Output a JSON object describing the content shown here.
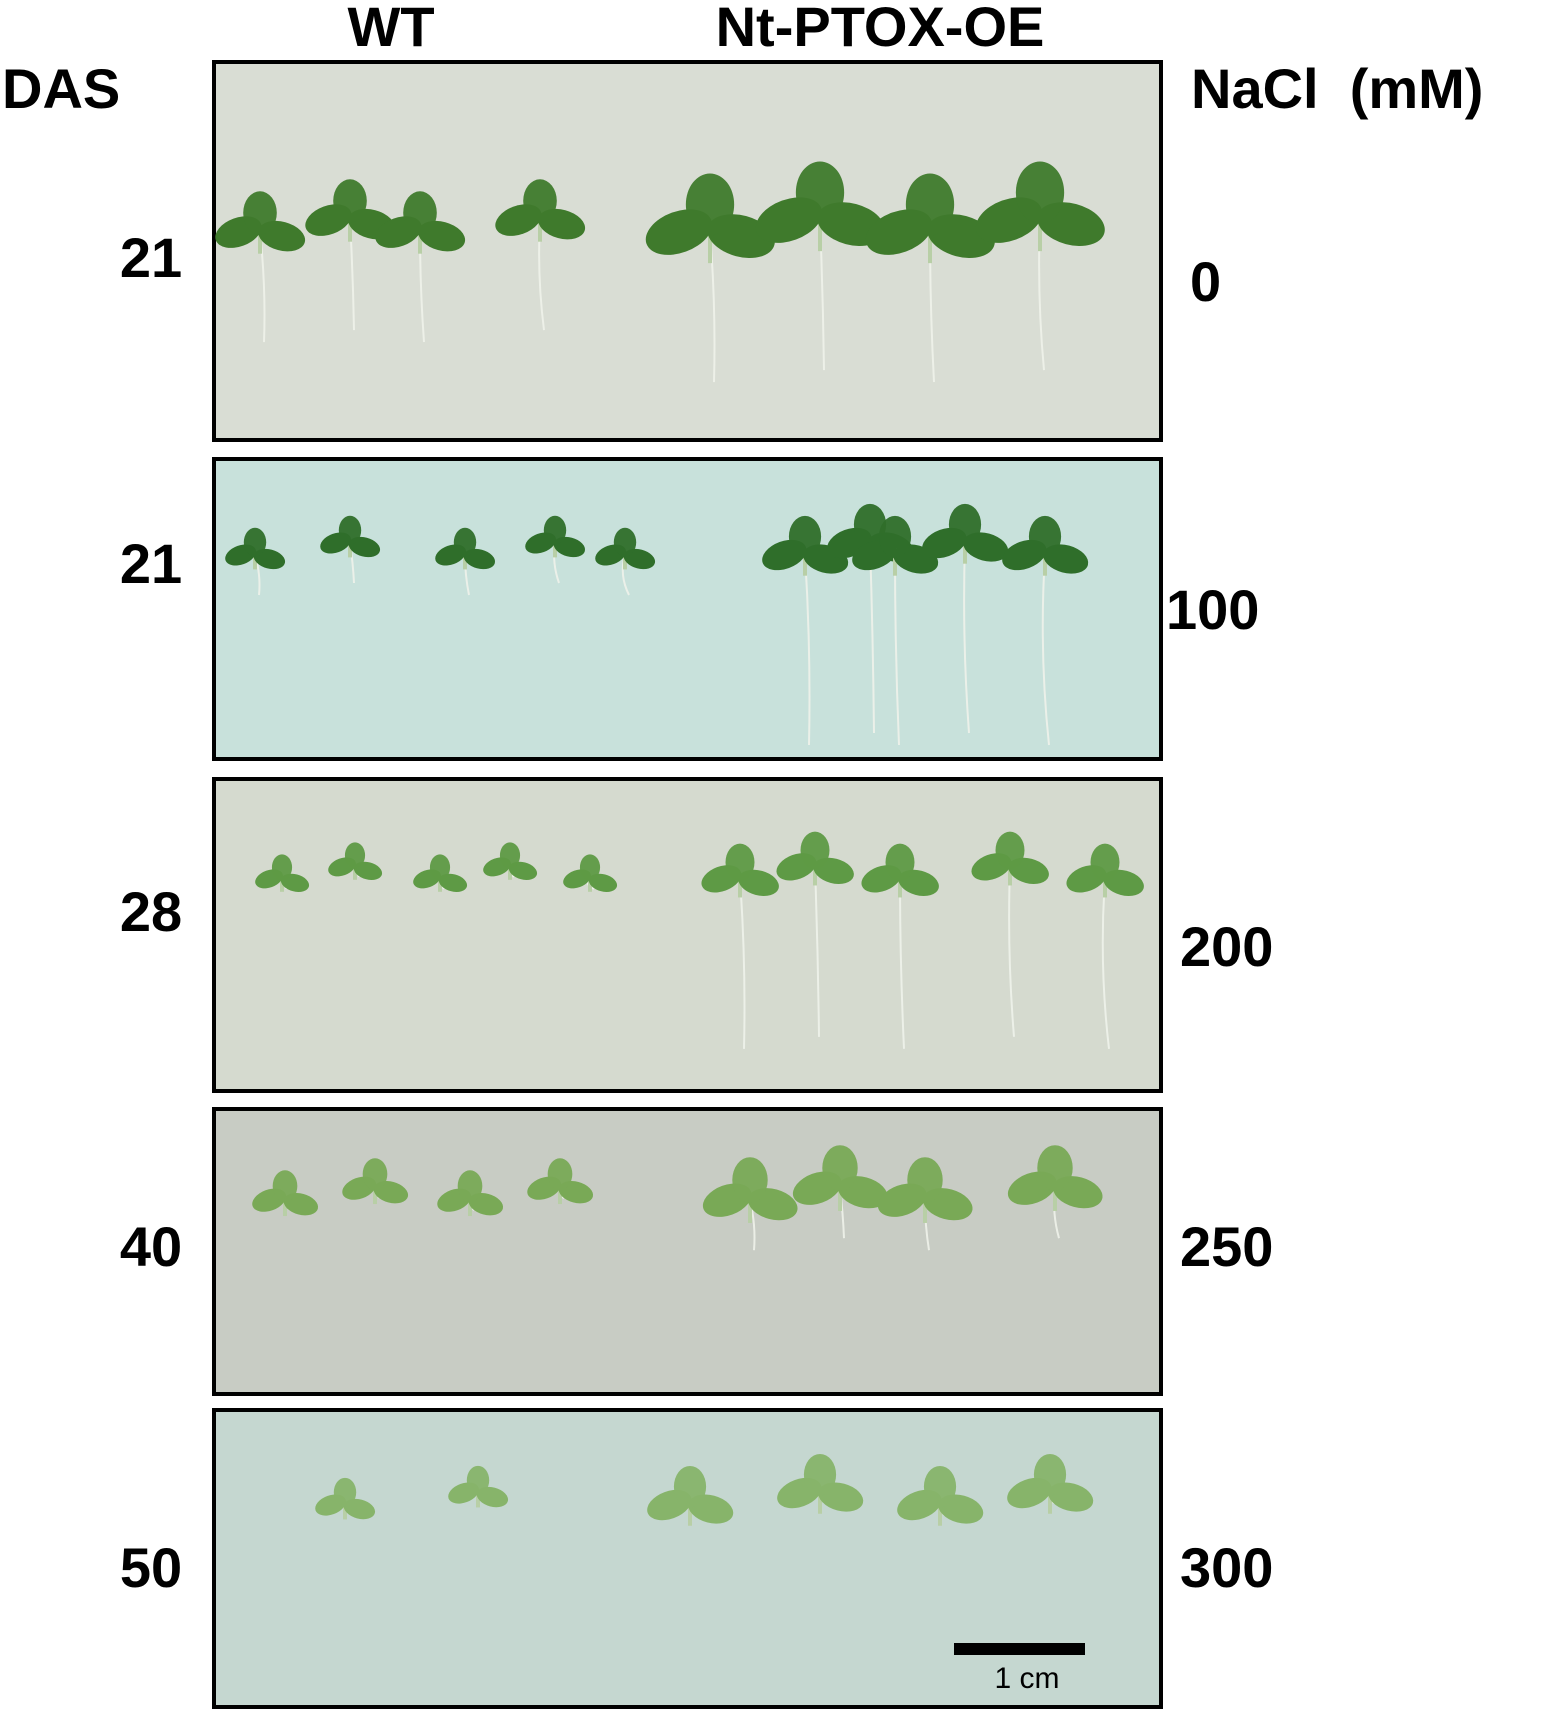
{
  "header": {
    "das_label": "DAS",
    "nacl_label": "NaCl  (mM)",
    "columns": [
      "WT",
      "Nt-PTOX-OE"
    ]
  },
  "rows": [
    {
      "das": "21",
      "nacl": "0"
    },
    {
      "das": "21",
      "nacl": "100"
    },
    {
      "das": "28",
      "nacl": "200"
    },
    {
      "das": "40",
      "nacl": "250"
    },
    {
      "das": "50",
      "nacl": "300"
    }
  ],
  "scale_bar": "1 cm"
}
